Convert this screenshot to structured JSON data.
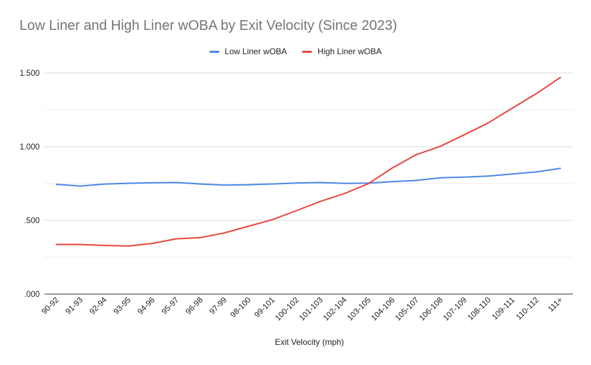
{
  "chart_data": {
    "type": "line",
    "title": "Low Liner and High Liner wOBA by Exit Velocity (Since 2023)",
    "xlabel": "Exit Velocity (mph)",
    "ylabel": "",
    "categories": [
      "90-92",
      "91-93",
      "92-94",
      "93-95",
      "94-96",
      "95-97",
      "96-98",
      "97-99",
      "98-100",
      "99-101",
      "100-102",
      "101-103",
      "102-104",
      "103-105",
      "104-106",
      "105-107",
      "106-108",
      "107-109",
      "108-110",
      "109-111",
      "110-112",
      "111+"
    ],
    "series": [
      {
        "name": "Low Liner wOBA",
        "color": "#4a86e8",
        "values": [
          0.745,
          0.733,
          0.746,
          0.752,
          0.755,
          0.757,
          0.747,
          0.739,
          0.742,
          0.747,
          0.754,
          0.757,
          0.751,
          0.753,
          0.763,
          0.771,
          0.789,
          0.794,
          0.801,
          0.815,
          0.829,
          0.853
        ]
      },
      {
        "name": "High Liner wOBA",
        "color": "#e8453c",
        "values": [
          0.337,
          0.337,
          0.33,
          0.326,
          0.344,
          0.375,
          0.383,
          0.415,
          0.46,
          0.505,
          0.566,
          0.629,
          0.682,
          0.749,
          0.856,
          0.946,
          1.003,
          1.081,
          1.162,
          1.262,
          1.36,
          1.47
        ]
      }
    ],
    "yticks": [
      ".000",
      ".500",
      "1.000",
      "1.500"
    ],
    "ylim": [
      0,
      1.5
    ],
    "grid": true,
    "legend_position": "top-center"
  }
}
